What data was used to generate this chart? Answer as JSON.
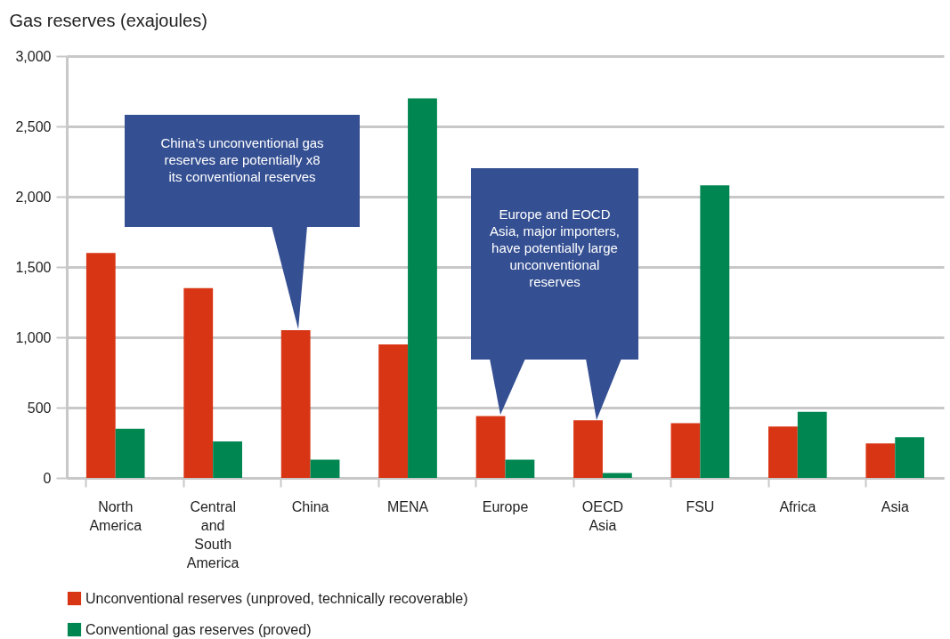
{
  "chart_data": {
    "type": "bar",
    "ylabel": "Gas reserves (exajoules)",
    "categories": [
      "North America",
      "Central and South America",
      "China",
      "MENA",
      "Europe",
      "OECD Asia",
      "FSU",
      "Africa",
      "Asia"
    ],
    "series": [
      {
        "name": "Unconventional reserves (unproved, technically recoverable)",
        "color": "#d83515",
        "values": [
          1600,
          1350,
          1050,
          950,
          440,
          410,
          390,
          365,
          245
        ]
      },
      {
        "name": "Conventional gas reserves (proved)",
        "color": "#008751",
        "values": [
          350,
          260,
          130,
          2700,
          130,
          35,
          2080,
          470,
          290
        ]
      }
    ],
    "ylim": [
      0,
      3000
    ],
    "yticks": [
      0,
      500,
      {
        "value": 1000,
        "label": "1,000"
      },
      {
        "value": 1500,
        "label": "1,500"
      },
      {
        "value": 2000,
        "label": "2,000"
      },
      {
        "value": 2500,
        "label": "2,500"
      },
      {
        "value": 3000,
        "label": "3,000"
      }
    ],
    "grid": "y",
    "legend": "bottom",
    "annotations": [
      "China’s unconventional gas reserves are potentially x8 its conventional reserves",
      "Europe and EOCD Asia, major importers, have potentially large unconventional reserves"
    ]
  }
}
